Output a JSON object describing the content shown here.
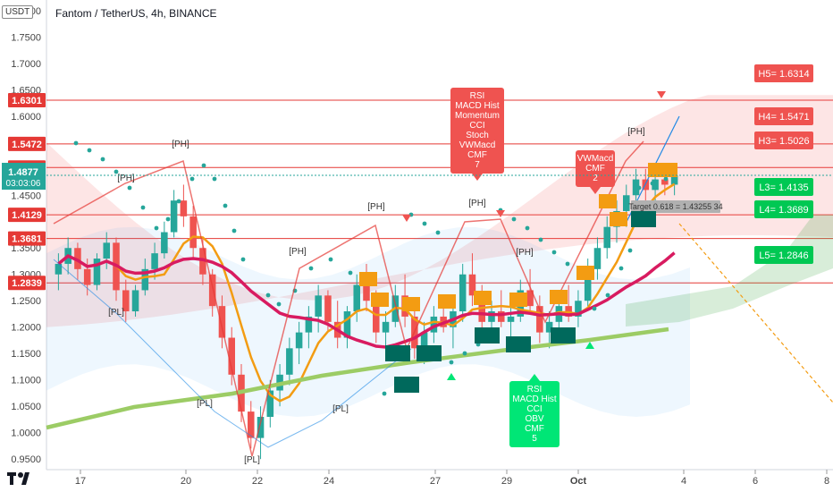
{
  "header": {
    "quote_currency": "USDT",
    "title": "Fantom / TetherUS, 4h, BINANCE"
  },
  "colors": {
    "bull": "#26a69a",
    "bear": "#ef5350",
    "level_line": "#e53935",
    "orange": "#f39c12",
    "green_label": "#00c853",
    "dark_teal": "#00695c"
  },
  "price_axis": {
    "ticks": [
      "1.8000",
      "1.7500",
      "1.7000",
      "1.6500",
      "1.6000",
      "1.5500",
      "1.5000",
      "1.4500",
      "1.3500",
      "1.3000",
      "1.2500",
      "1.2000",
      "1.1500",
      "1.1000",
      "1.0500",
      "1.0000",
      "0.9500"
    ],
    "level_tags": [
      "1.6301",
      "1.5472",
      "1.5025",
      "1.4129",
      "1.3681",
      "1.2839"
    ],
    "current_price": "1.4877",
    "countdown": "03:03:06"
  },
  "time_axis": {
    "ticks": [
      "17",
      "20",
      "22",
      "24",
      "27",
      "29",
      "Oct",
      "4",
      "6",
      "8"
    ]
  },
  "pivot_labels": {
    "ph": "[PH]",
    "pl": "[PL]"
  },
  "resistance_labels": [
    "H5= 1.6314",
    "H4= 1.5471",
    "H3= 1.5026"
  ],
  "support_labels": [
    "L3= 1.4135",
    "L4= 1.3689",
    "L5= 1.2846"
  ],
  "divergence_bear": [
    "RSI",
    "MACD Hist",
    "Momentum",
    "CCI",
    "Stoch",
    "VWMacd",
    "CMF",
    "7"
  ],
  "divergence_bear_small": [
    "VWMacd",
    "CMF",
    "2"
  ],
  "divergence_bull": [
    "RSI",
    "MACD Hist",
    "CCI",
    "OBV",
    "CMF",
    "5"
  ],
  "target_label": "Target 0.618 = 1.43255 34",
  "chart_data": {
    "type": "candlestick",
    "title": "Fantom / TetherUS, 4h, BINANCE",
    "ylim": [
      0.93,
      1.82
    ],
    "ylabel": "USDT",
    "x_ticks": [
      "17",
      "20",
      "22",
      "24",
      "27",
      "29",
      "Oct",
      "4",
      "6",
      "8"
    ],
    "horizontal_levels": [
      1.6301,
      1.5472,
      1.5025,
      1.4129,
      1.3681,
      1.2839
    ],
    "current_price": 1.4877,
    "ohlc": [
      [
        1.3,
        1.34,
        1.27,
        1.32
      ],
      [
        1.32,
        1.37,
        1.3,
        1.35
      ],
      [
        1.35,
        1.36,
        1.29,
        1.31
      ],
      [
        1.31,
        1.33,
        1.26,
        1.28
      ],
      [
        1.28,
        1.34,
        1.27,
        1.33
      ],
      [
        1.33,
        1.38,
        1.31,
        1.36
      ],
      [
        1.36,
        1.37,
        1.25,
        1.27
      ],
      [
        1.27,
        1.29,
        1.21,
        1.23
      ],
      [
        1.23,
        1.28,
        1.22,
        1.27
      ],
      [
        1.27,
        1.33,
        1.26,
        1.31
      ],
      [
        1.31,
        1.36,
        1.29,
        1.34
      ],
      [
        1.34,
        1.4,
        1.33,
        1.38
      ],
      [
        1.38,
        1.46,
        1.37,
        1.44
      ],
      [
        1.44,
        1.47,
        1.39,
        1.41
      ],
      [
        1.41,
        1.43,
        1.33,
        1.35
      ],
      [
        1.35,
        1.37,
        1.28,
        1.3
      ],
      [
        1.3,
        1.31,
        1.22,
        1.24
      ],
      [
        1.24,
        1.26,
        1.16,
        1.18
      ],
      [
        1.18,
        1.2,
        1.09,
        1.11
      ],
      [
        1.11,
        1.13,
        1.02,
        1.04
      ],
      [
        1.04,
        1.06,
        0.97,
        0.99
      ],
      [
        0.99,
        1.05,
        0.95,
        1.03
      ],
      [
        1.03,
        1.1,
        1.01,
        1.08
      ],
      [
        1.08,
        1.13,
        1.05,
        1.11
      ],
      [
        1.11,
        1.18,
        1.09,
        1.16
      ],
      [
        1.16,
        1.21,
        1.13,
        1.19
      ],
      [
        1.19,
        1.24,
        1.16,
        1.22
      ],
      [
        1.22,
        1.28,
        1.19,
        1.26
      ],
      [
        1.26,
        1.27,
        1.19,
        1.21
      ],
      [
        1.21,
        1.25,
        1.16,
        1.18
      ],
      [
        1.18,
        1.24,
        1.16,
        1.23
      ],
      [
        1.23,
        1.3,
        1.21,
        1.28
      ],
      [
        1.28,
        1.32,
        1.23,
        1.25
      ],
      [
        1.25,
        1.27,
        1.17,
        1.19
      ],
      [
        1.19,
        1.23,
        1.15,
        1.21
      ],
      [
        1.21,
        1.28,
        1.2,
        1.26
      ],
      [
        1.26,
        1.3,
        1.2,
        1.22
      ],
      [
        1.22,
        1.25,
        1.14,
        1.16
      ],
      [
        1.16,
        1.21,
        1.13,
        1.19
      ],
      [
        1.19,
        1.24,
        1.17,
        1.22
      ],
      [
        1.22,
        1.26,
        1.19,
        1.2
      ],
      [
        1.2,
        1.24,
        1.16,
        1.23
      ],
      [
        1.23,
        1.32,
        1.21,
        1.3
      ],
      [
        1.3,
        1.34,
        1.24,
        1.26
      ],
      [
        1.26,
        1.28,
        1.19,
        1.21
      ],
      [
        1.21,
        1.25,
        1.18,
        1.23
      ],
      [
        1.23,
        1.27,
        1.2,
        1.21
      ],
      [
        1.21,
        1.24,
        1.17,
        1.22
      ],
      [
        1.22,
        1.29,
        1.21,
        1.27
      ],
      [
        1.27,
        1.31,
        1.23,
        1.24
      ],
      [
        1.24,
        1.26,
        1.17,
        1.19
      ],
      [
        1.19,
        1.23,
        1.16,
        1.21
      ],
      [
        1.21,
        1.26,
        1.19,
        1.24
      ],
      [
        1.24,
        1.28,
        1.21,
        1.22
      ],
      [
        1.22,
        1.27,
        1.2,
        1.25
      ],
      [
        1.25,
        1.33,
        1.24,
        1.31
      ],
      [
        1.31,
        1.37,
        1.29,
        1.35
      ],
      [
        1.35,
        1.41,
        1.33,
        1.39
      ],
      [
        1.39,
        1.44,
        1.36,
        1.42
      ],
      [
        1.42,
        1.47,
        1.39,
        1.45
      ],
      [
        1.45,
        1.5,
        1.42,
        1.48
      ],
      [
        1.48,
        1.5,
        1.44,
        1.46
      ],
      [
        1.46,
        1.49,
        1.44,
        1.48
      ],
      [
        1.48,
        1.5,
        1.45,
        1.47
      ],
      [
        1.47,
        1.49,
        1.45,
        1.4877
      ]
    ]
  }
}
